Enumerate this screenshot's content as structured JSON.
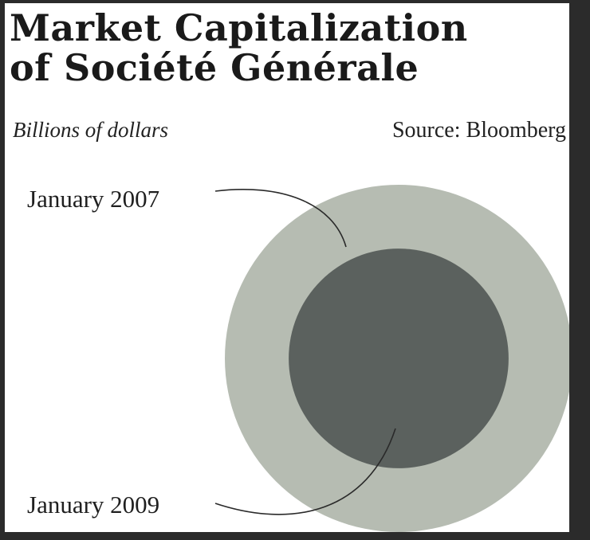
{
  "title_line1": "Market Capitalization",
  "title_line2": "of Société Générale",
  "subtitle": "Billions of dollars",
  "source": "Source: Bloomberg",
  "colors": {
    "background": "#ffffff",
    "outer_circle": "#b6bcb2",
    "inner_circle": "#5b615e",
    "leader_line": "#2a2a2a"
  },
  "chart_data": {
    "type": "area",
    "series": [
      {
        "name": "January 2007",
        "value": 100
      },
      {
        "name": "January 2009",
        "value": 40
      }
    ]
  }
}
